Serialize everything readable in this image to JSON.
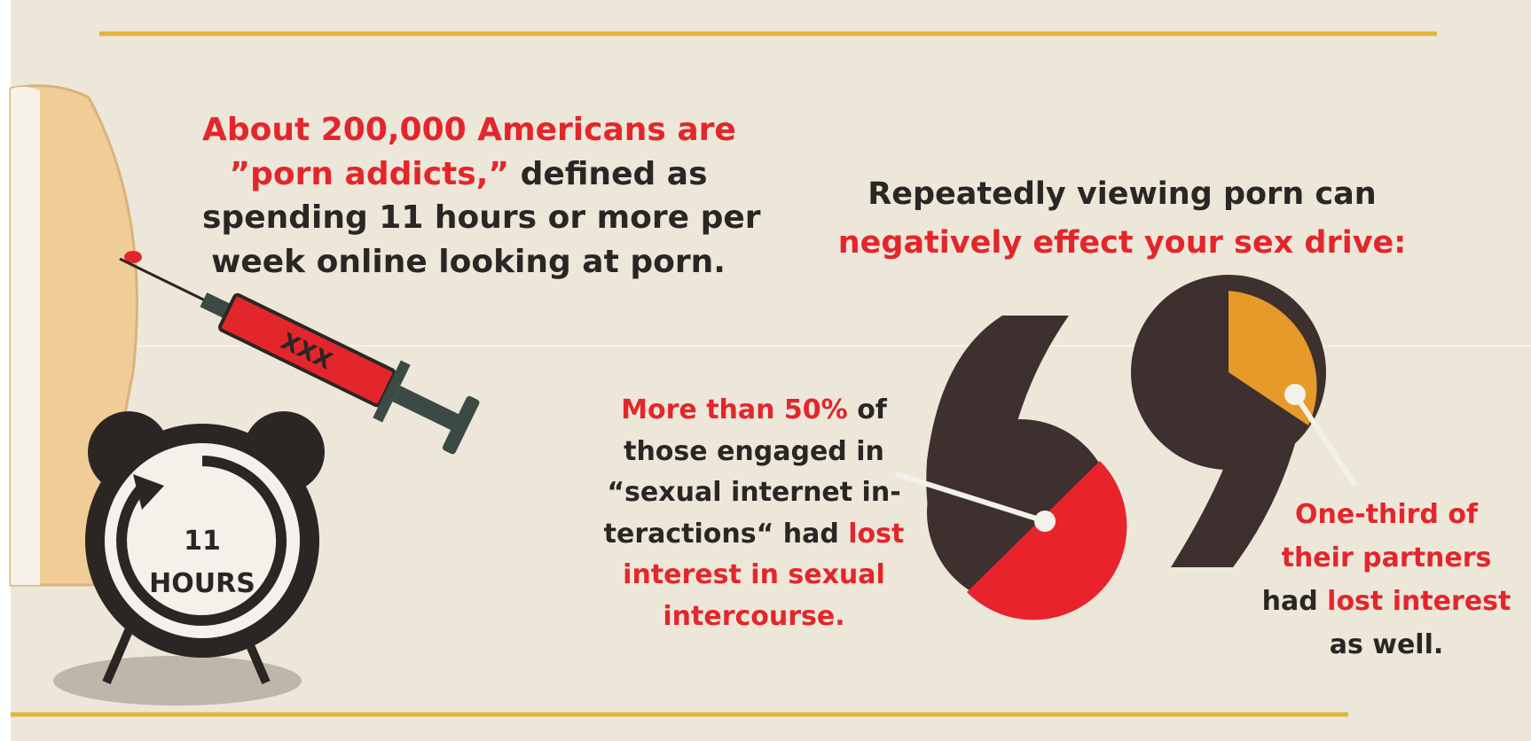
{
  "left_text": {
    "lines": [
      [
        {
          "text": "About 200,000 Americans are",
          "color": "red"
        }
      ],
      [
        {
          "text": "”porn addicts,”",
          "color": "red"
        },
        {
          "text": " defined as",
          "color": "black"
        }
      ],
      [
        {
          "text": "spending 11 hours or more per",
          "color": "black"
        }
      ],
      [
        {
          "text": "week online looking at porn.",
          "color": "black"
        }
      ]
    ]
  },
  "right_heading": {
    "lines": [
      [
        {
          "text": "Repeatedly viewing porn can",
          "color": "black"
        }
      ],
      [
        {
          "text": "negatively effect your sex drive:",
          "color": "red"
        }
      ]
    ]
  },
  "middle_text": {
    "lines": [
      [
        {
          "text": "More than 50%",
          "color": "red"
        },
        {
          "text": " of",
          "color": "black"
        }
      ],
      [
        {
          "text": "those engaged in",
          "color": "black"
        }
      ],
      [
        {
          "text": "“sexual internet in-",
          "color": "black"
        }
      ],
      [
        {
          "text": "teractions“ had ",
          "color": "black"
        },
        {
          "text": "lost",
          "color": "red"
        }
      ],
      [
        {
          "text": "interest in sexual",
          "color": "red"
        }
      ],
      [
        {
          "text": "intercourse.",
          "color": "red"
        }
      ]
    ]
  },
  "right_text": {
    "lines": [
      [
        {
          "text": "One-third of",
          "color": "red"
        }
      ],
      [
        {
          "text": "their partners",
          "color": "red"
        }
      ],
      [
        {
          "text": "had ",
          "color": "black"
        },
        {
          "text": "lost interest",
          "color": "red"
        }
      ],
      [
        {
          "text": "as well.",
          "color": "black"
        }
      ]
    ]
  },
  "clock": {
    "number": "11",
    "unit": "HOURS"
  },
  "syringe": {
    "label": "XXX"
  }
}
